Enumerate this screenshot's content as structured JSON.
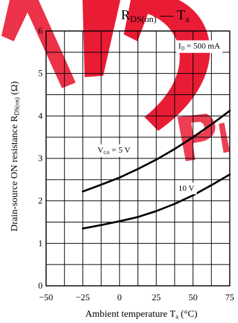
{
  "chart_data": {
    "type": "line",
    "title": {
      "main": "R",
      "main_sub": "DS(on)",
      "sep": " — ",
      "tail": "T",
      "tail_sub": "a"
    },
    "xlabel": {
      "main": "Ambient temperature  T",
      "sub": "a",
      "tail": "  (°C)"
    },
    "ylabel": {
      "main": "Drain-source ON resistance  R",
      "sub": "DS(on)",
      "tail": "  (Ω)"
    },
    "xlim": [
      -50,
      75
    ],
    "ylim": [
      0,
      6
    ],
    "x_ticks": [
      "−50",
      "−25",
      "0",
      "25",
      "50",
      "75"
    ],
    "y_ticks": [
      "0",
      "1",
      "2",
      "3",
      "4",
      "5",
      "6"
    ],
    "grid": true,
    "annotation": {
      "main": "I",
      "sub": "D",
      "tail": " = 500 mA"
    },
    "series": [
      {
        "name": {
          "main": "V",
          "sub": "GS",
          "tail": " = 5 V"
        },
        "x": [
          -25,
          -12.5,
          0,
          12.5,
          25,
          37.5,
          50,
          62.5,
          75
        ],
        "y": [
          2.22,
          2.38,
          2.55,
          2.75,
          2.97,
          3.22,
          3.5,
          3.8,
          4.12
        ]
      },
      {
        "name": {
          "main": "10 V"
        },
        "x": [
          -25,
          -12.5,
          0,
          12.5,
          25,
          37.5,
          50,
          62.5,
          75
        ],
        "y": [
          1.35,
          1.43,
          1.52,
          1.62,
          1.76,
          1.93,
          2.13,
          2.37,
          2.62
        ]
      }
    ],
    "colors": {
      "line": "#000000",
      "watermark": "#e8102a"
    }
  }
}
